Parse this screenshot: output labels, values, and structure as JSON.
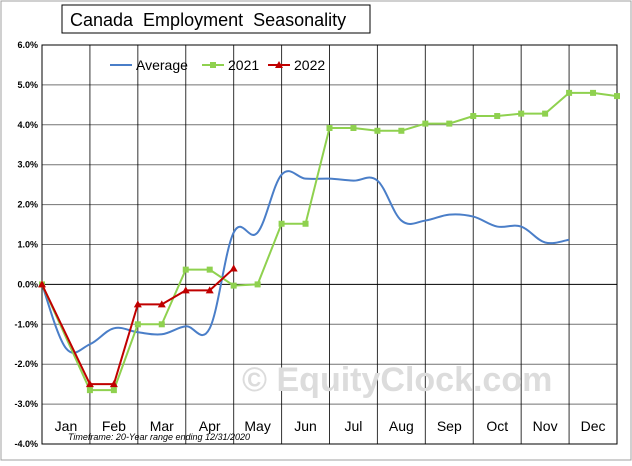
{
  "colors": {
    "average": "#4a7ec8",
    "y2021": "#8fd14f",
    "y2022": "#c00000",
    "grid": "#000000",
    "frame": "#000000",
    "watermark": "#d9d9d9"
  },
  "timeframe_note": "Timeframe: 20-Year range ending 12/31/2020",
  "watermark": "© EquityClock.com",
  "chart_data": {
    "type": "line",
    "title": "Canada  Employment  Seasonality",
    "xlabel": "",
    "ylabel": "",
    "categories": [
      "Jan",
      "Feb",
      "Mar",
      "Apr",
      "May",
      "Jun",
      "Jul",
      "Aug",
      "Sep",
      "Oct",
      "Nov",
      "Dec"
    ],
    "xlim": [
      0,
      12
    ],
    "ylim": [
      -4.0,
      6.0
    ],
    "y_ticks": [
      -4.0,
      -3.0,
      -2.0,
      -1.0,
      0.0,
      1.0,
      2.0,
      3.0,
      4.0,
      5.0,
      6.0
    ],
    "y_tick_labels": [
      "-4.0%",
      "-3.0%",
      "-2.0%",
      "-1.0%",
      "0.0%",
      "1.0%",
      "2.0%",
      "3.0%",
      "4.0%",
      "5.0%",
      "6.0%"
    ],
    "grid": true,
    "legend_position": "top-left",
    "series": [
      {
        "name": "Average",
        "marker": "none",
        "smooth": true,
        "x": [
          0,
          0.5,
          1.0,
          1.5,
          2.0,
          2.5,
          3.0,
          3.5,
          4.0,
          4.5,
          5.0,
          5.5,
          6.0,
          6.5,
          7.0,
          7.5,
          8.0,
          8.5,
          9.0,
          9.5,
          10.0,
          10.5,
          11.0,
          11.5,
          12.0
        ],
        "y": [
          0.0,
          -1.6,
          -1.5,
          -1.1,
          -1.2,
          -1.25,
          -1.05,
          -1.1,
          1.3,
          1.3,
          2.75,
          2.65,
          2.65,
          2.6,
          2.6,
          1.6,
          1.6,
          1.75,
          1.7,
          1.45,
          1.45,
          1.05,
          1.12,
          null,
          null
        ]
      },
      {
        "name": "2021",
        "marker": "square",
        "x": [
          0,
          1.0,
          1.5,
          2.0,
          2.5,
          3.0,
          3.5,
          4.0,
          4.5,
          5.0,
          5.5,
          6.0,
          6.5,
          7.0,
          7.5,
          8.0,
          8.5,
          9.0,
          9.5,
          10.0,
          10.5,
          11.0,
          11.5,
          12.0
        ],
        "y": [
          0.0,
          -2.65,
          -2.65,
          -1.0,
          -1.0,
          0.37,
          0.37,
          -0.03,
          0.0,
          1.52,
          1.52,
          3.92,
          3.92,
          3.85,
          3.85,
          4.03,
          4.03,
          4.22,
          4.22,
          4.28,
          4.28,
          4.8,
          4.8,
          4.72
        ]
      },
      {
        "name": "2022",
        "marker": "triangle",
        "x": [
          0,
          1.0,
          1.5,
          2.0,
          2.5,
          3.0,
          3.5,
          4.0
        ],
        "y": [
          0.0,
          -2.5,
          -2.5,
          -0.5,
          -0.5,
          -0.15,
          -0.15,
          0.4
        ]
      }
    ]
  }
}
